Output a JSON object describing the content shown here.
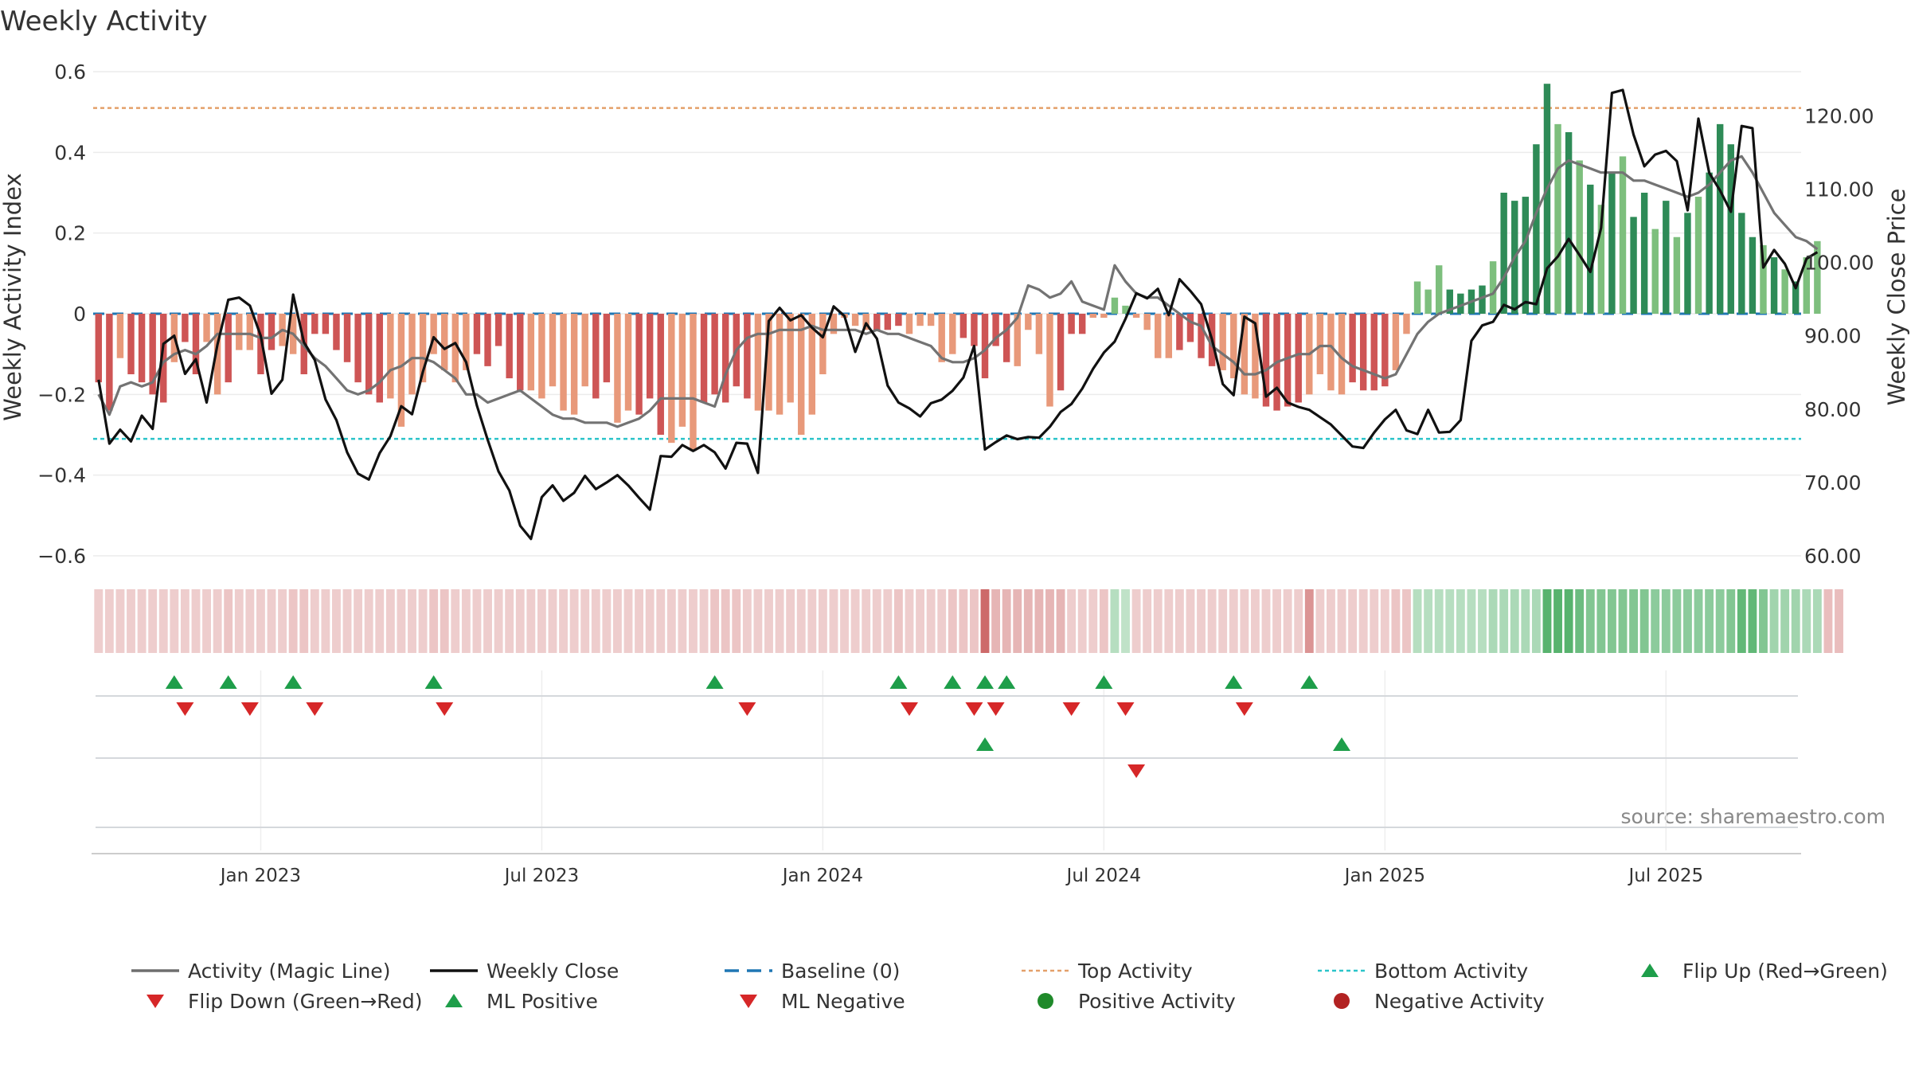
{
  "chart_data": {
    "type": "bar+line",
    "title": "Weekly Activity",
    "ylabel_left": "Weekly Activity Index",
    "ylabel_right": "Weekly Close Price",
    "source": "source: sharemaestro.com",
    "y_left": {
      "min": -0.6,
      "max": 0.6,
      "ticks": [
        0.6,
        0.4,
        0.2,
        0,
        -0.2,
        -0.4,
        -0.6
      ],
      "tick_labels": [
        "0.6",
        "0.4",
        "0.2",
        "0",
        "−0.2",
        "−0.4",
        "−0.6"
      ]
    },
    "y_right": {
      "min": 60,
      "max": 126,
      "ticks": [
        120,
        110,
        100,
        90,
        80,
        70,
        60
      ],
      "tick_labels": [
        "120.00",
        "110.00",
        "100.00",
        "90.00",
        "80.00",
        "70.00",
        "60.00"
      ]
    },
    "top_activity": 0.51,
    "bottom_activity": -0.31,
    "weeks": 158,
    "x_ticks": [
      {
        "week": 15,
        "label": "Jan 2023"
      },
      {
        "week": 41,
        "label": "Jul 2023"
      },
      {
        "week": 67,
        "label": "Jan 2024"
      },
      {
        "week": 93,
        "label": "Jul 2024"
      },
      {
        "week": 119,
        "label": "Jan 2025"
      },
      {
        "week": 145,
        "label": "Jul 2025"
      }
    ],
    "activity": [
      -0.17,
      -0.24,
      -0.11,
      -0.15,
      -0.17,
      -0.2,
      -0.22,
      -0.12,
      -0.07,
      -0.15,
      -0.07,
      -0.2,
      -0.17,
      -0.09,
      -0.09,
      -0.15,
      -0.09,
      -0.08,
      -0.1,
      -0.15,
      -0.05,
      -0.05,
      -0.09,
      -0.12,
      -0.17,
      -0.2,
      -0.22,
      -0.21,
      -0.28,
      -0.2,
      -0.17,
      -0.1,
      -0.14,
      -0.17,
      -0.14,
      -0.1,
      -0.13,
      -0.08,
      -0.16,
      -0.19,
      -0.19,
      -0.21,
      -0.18,
      -0.24,
      -0.25,
      -0.18,
      -0.21,
      -0.17,
      -0.27,
      -0.24,
      -0.25,
      -0.21,
      -0.3,
      -0.32,
      -0.28,
      -0.34,
      -0.22,
      -0.2,
      -0.22,
      -0.18,
      -0.21,
      -0.24,
      -0.24,
      -0.25,
      -0.22,
      -0.3,
      -0.25,
      -0.15,
      -0.05,
      -0.01,
      -0.03,
      -0.04,
      -0.04,
      -0.04,
      -0.03,
      -0.05,
      -0.03,
      -0.03,
      -0.12,
      -0.1,
      -0.06,
      -0.08,
      -0.16,
      -0.08,
      -0.12,
      -0.13,
      -0.04,
      -0.1,
      -0.23,
      -0.19,
      -0.05,
      -0.05,
      -0.01,
      -0.01,
      0.04,
      0.02,
      -0.01,
      -0.04,
      -0.11,
      -0.11,
      -0.09,
      -0.07,
      -0.11,
      -0.13,
      -0.14,
      -0.16,
      -0.2,
      -0.21,
      -0.23,
      -0.24,
      -0.23,
      -0.22,
      -0.2,
      -0.15,
      -0.19,
      -0.2,
      -0.17,
      -0.19,
      -0.19,
      -0.18,
      -0.14,
      -0.05,
      0.08,
      0.06,
      0.12,
      0.06,
      0.05,
      0.06,
      0.07,
      0.13,
      0.3,
      0.28,
      0.29,
      0.42,
      0.57,
      0.47,
      0.45,
      0.38,
      0.32,
      0.27,
      0.35,
      0.39,
      0.24,
      0.3,
      0.21,
      0.28,
      0.19,
      0.25,
      0.29,
      0.35,
      0.47,
      0.42,
      0.25,
      0.19,
      0.17,
      0.14,
      0.11,
      0.08,
      0.14,
      0.18
    ],
    "magic_line": [
      -0.2,
      -0.25,
      -0.18,
      -0.17,
      -0.18,
      -0.17,
      -0.12,
      -0.1,
      -0.09,
      -0.1,
      -0.08,
      -0.05,
      -0.05,
      -0.05,
      -0.05,
      -0.06,
      -0.06,
      -0.04,
      -0.05,
      -0.08,
      -0.11,
      -0.13,
      -0.16,
      -0.19,
      -0.2,
      -0.19,
      -0.17,
      -0.14,
      -0.13,
      -0.11,
      -0.11,
      -0.12,
      -0.14,
      -0.16,
      -0.2,
      -0.2,
      -0.22,
      -0.21,
      -0.2,
      -0.19,
      -0.21,
      -0.23,
      -0.25,
      -0.26,
      -0.26,
      -0.27,
      -0.27,
      -0.27,
      -0.28,
      -0.27,
      -0.26,
      -0.24,
      -0.21,
      -0.21,
      -0.21,
      -0.21,
      -0.22,
      -0.23,
      -0.15,
      -0.09,
      -0.06,
      -0.05,
      -0.05,
      -0.04,
      -0.04,
      -0.04,
      -0.03,
      -0.04,
      -0.04,
      -0.04,
      -0.04,
      -0.05,
      -0.04,
      -0.05,
      -0.05,
      -0.06,
      -0.07,
      -0.08,
      -0.11,
      -0.12,
      -0.12,
      -0.11,
      -0.09,
      -0.06,
      -0.04,
      -0.01,
      0.07,
      0.06,
      0.04,
      0.05,
      0.08,
      0.03,
      0.02,
      0.01,
      0.12,
      0.08,
      0.05,
      0.04,
      0.04,
      0.02,
      0.0,
      -0.02,
      -0.03,
      -0.08,
      -0.1,
      -0.12,
      -0.15,
      -0.15,
      -0.14,
      -0.12,
      -0.11,
      -0.1,
      -0.1,
      -0.08,
      -0.08,
      -0.11,
      -0.13,
      -0.14,
      -0.15,
      -0.16,
      -0.15,
      -0.1,
      -0.05,
      -0.02,
      0.0,
      0.01,
      0.02,
      0.03,
      0.04,
      0.05,
      0.09,
      0.14,
      0.18,
      0.25,
      0.31,
      0.36,
      0.38,
      0.37,
      0.36,
      0.35,
      0.35,
      0.35,
      0.33,
      0.33,
      0.32,
      0.31,
      0.3,
      0.29,
      0.3,
      0.32,
      0.35,
      0.38,
      0.39,
      0.35,
      0.3,
      0.25,
      0.22,
      0.19,
      0.18,
      0.16
    ],
    "close": [
      84.0,
      75.3,
      77.2,
      75.6,
      79.1,
      77.3,
      88.9,
      90.0,
      84.8,
      86.8,
      80.9,
      88.8,
      94.9,
      95.2,
      94.1,
      90.0,
      82.1,
      84.0,
      95.6,
      89.1,
      86.7,
      81.3,
      78.5,
      74.1,
      71.2,
      70.4,
      74.0,
      76.3,
      80.4,
      79.3,
      85.1,
      89.8,
      88.2,
      89.0,
      86.4,
      80.5,
      75.8,
      71.5,
      68.9,
      64.1,
      62.3,
      68.0,
      69.6,
      67.5,
      68.6,
      70.9,
      69.1,
      70.0,
      71.0,
      69.6,
      67.9,
      66.3,
      73.6,
      73.5,
      75.1,
      74.3,
      75.1,
      74.1,
      71.9,
      75.4,
      75.3,
      71.3,
      92.0,
      93.8,
      92.1,
      92.8,
      91.1,
      89.8,
      94.0,
      92.7,
      87.8,
      91.7,
      89.6,
      83.2,
      80.9,
      80.1,
      79.0,
      80.8,
      81.3,
      82.5,
      84.3,
      88.6,
      74.5,
      75.5,
      76.4,
      75.9,
      76.2,
      76.1,
      77.6,
      79.6,
      80.7,
      82.8,
      85.5,
      87.7,
      89.2,
      92.3,
      95.8,
      95.1,
      96.4,
      92.8,
      97.7,
      96.1,
      94.3,
      89.5,
      83.4,
      81.9,
      92.6,
      91.7,
      81.7,
      82.9,
      80.9,
      80.3,
      79.9,
      78.9,
      77.9,
      76.4,
      74.9,
      74.7,
      76.8,
      78.6,
      79.9,
      77.1,
      76.6,
      79.9,
      76.8,
      76.9,
      78.5,
      89.3,
      91.4,
      91.9,
      94.2,
      93.6,
      94.6,
      94.3,
      99.2,
      100.8,
      103.2,
      101.0,
      98.7,
      104.7,
      123.1,
      123.5,
      117.4,
      113.1,
      114.7,
      115.2,
      113.8,
      107.1,
      119.6,
      112.2,
      109.8,
      106.9,
      118.6,
      118.3,
      99.3,
      101.7,
      99.8,
      96.5,
      100.5,
      101.4
    ],
    "segments": [
      {
        "start": 0,
        "end": 2,
        "color": "#ce5555",
        "light": false
      },
      {
        "start": 2,
        "end": 3,
        "color": "#e8997a",
        "light": true
      },
      {
        "start": 3,
        "end": 7,
        "color": "#ce5555",
        "light": false
      },
      {
        "start": 7,
        "end": 8,
        "color": "#e8997a",
        "light": true
      },
      {
        "start": 8,
        "end": 10,
        "color": "#ce5555",
        "light": false
      },
      {
        "start": 10,
        "end": 12,
        "color": "#e8997a",
        "light": true
      },
      {
        "start": 12,
        "end": 13,
        "color": "#ce5555",
        "light": false
      },
      {
        "start": 13,
        "end": 15,
        "color": "#e8997a",
        "light": true
      },
      {
        "start": 15,
        "end": 17,
        "color": "#ce5555",
        "light": false
      },
      {
        "start": 17,
        "end": 19,
        "color": "#e8997a",
        "light": true
      },
      {
        "start": 19,
        "end": 27,
        "color": "#ce5555",
        "light": false
      },
      {
        "start": 27,
        "end": 35,
        "color": "#e8997a",
        "light": true
      },
      {
        "start": 35,
        "end": 40,
        "color": "#ce5555",
        "light": false
      },
      {
        "start": 40,
        "end": 46,
        "color": "#e8997a",
        "light": true
      },
      {
        "start": 46,
        "end": 48,
        "color": "#ce5555",
        "light": false
      },
      {
        "start": 48,
        "end": 50,
        "color": "#e8997a",
        "light": true
      },
      {
        "start": 50,
        "end": 53,
        "color": "#ce5555",
        "light": false
      },
      {
        "start": 53,
        "end": 56,
        "color": "#e8997a",
        "light": true
      },
      {
        "start": 56,
        "end": 61,
        "color": "#ce5555",
        "light": false
      },
      {
        "start": 61,
        "end": 72,
        "color": "#e8997a",
        "light": true
      },
      {
        "start": 72,
        "end": 75,
        "color": "#ce5555",
        "light": false
      },
      {
        "start": 75,
        "end": 80,
        "color": "#e8997a",
        "light": true
      },
      {
        "start": 80,
        "end": 85,
        "color": "#ce5555",
        "light": false
      },
      {
        "start": 85,
        "end": 89,
        "color": "#e8997a",
        "light": true
      },
      {
        "start": 89,
        "end": 92,
        "color": "#ce5555",
        "light": false
      },
      {
        "start": 92,
        "end": 100,
        "color": "#e8997a",
        "light": true
      },
      {
        "start": 100,
        "end": 104,
        "color": "#ce5555",
        "light": false
      },
      {
        "start": 104,
        "end": 108,
        "color": "#e8997a",
        "light": true
      },
      {
        "start": 108,
        "end": 112,
        "color": "#ce5555",
        "light": false
      },
      {
        "start": 112,
        "end": 116,
        "color": "#e8997a",
        "light": true
      },
      {
        "start": 116,
        "end": 120,
        "color": "#ce5555",
        "light": false
      },
      {
        "start": 120,
        "end": 122,
        "color": "#e8997a",
        "light": true
      },
      {
        "start": 122,
        "end": 130,
        "color": "#ce5555",
        "light": false
      },
      {
        "start": 130,
        "end": 137,
        "color": "#e8997a",
        "light": true
      },
      {
        "start": 137,
        "end": 142,
        "color": "#ce5555",
        "light": false
      },
      {
        "start": 142,
        "end": 153,
        "color": "#e8997a",
        "light": true
      },
      {
        "start": 153,
        "end": 158,
        "color": "#ce5555",
        "light": false
      }
    ],
    "positive_colors": {
      "dark": "#2e8b57",
      "light": "#7dbf7d"
    },
    "negative_colors": {
      "dark": "#ce5555",
      "light": "#e8997a"
    },
    "positive_weeks_dark": [
      12,
      15,
      18,
      19,
      31,
      57,
      80,
      84,
      86,
      88,
      91,
      99,
      104,
      112,
      119,
      125,
      126,
      127,
      128,
      130,
      131,
      132,
      133,
      134,
      136,
      138,
      140,
      142,
      143,
      145,
      147,
      149,
      150,
      151,
      152,
      153,
      155,
      157
    ],
    "flip_up_weeks": [
      7,
      12,
      18,
      31,
      57,
      74,
      79,
      82,
      84,
      93,
      105,
      112
    ],
    "flip_down_weeks": [
      8,
      14,
      20,
      32,
      60,
      75,
      81,
      83,
      90,
      95,
      106
    ],
    "ml_positive_weeks": [
      82,
      115
    ],
    "ml_negative_weeks": [
      96
    ],
    "heat_strip": [
      0.3,
      0.3,
      0.3,
      0.3,
      0.3,
      0.3,
      0.3,
      0.3,
      0.3,
      0.3,
      0.3,
      0.3,
      0.35,
      0.3,
      0.3,
      0.3,
      0.3,
      0.3,
      0.35,
      0.35,
      0.3,
      0.3,
      0.3,
      0.3,
      0.3,
      0.3,
      0.3,
      0.3,
      0.3,
      0.3,
      0.3,
      0.35,
      0.35,
      0.3,
      0.3,
      0.3,
      0.3,
      0.3,
      0.3,
      0.3,
      0.3,
      0.3,
      0.3,
      0.3,
      0.3,
      0.3,
      0.3,
      0.3,
      0.3,
      0.3,
      0.3,
      0.3,
      0.3,
      0.3,
      0.3,
      0.3,
      0.3,
      0.35,
      0.35,
      0.35,
      0.3,
      0.3,
      0.3,
      0.3,
      0.3,
      0.3,
      0.3,
      0.3,
      0.3,
      0.3,
      0.3,
      0.3,
      0.3,
      0.3,
      0.35,
      0.3,
      0.3,
      0.3,
      0.3,
      0.35,
      0.35,
      0.35,
      0.9,
      0.45,
      0.45,
      0.45,
      0.45,
      0.45,
      0.45,
      0.45,
      0.3,
      0.3,
      0.3,
      0.35,
      0.35,
      0.3,
      0.3,
      0.3,
      0.3,
      0.3,
      0.3,
      0.3,
      0.3,
      0.3,
      0.3,
      0.3,
      0.3,
      0.3,
      0.3,
      0.3,
      0.3,
      0.3,
      0.65,
      0.3,
      0.3,
      0.3,
      0.3,
      0.3,
      0.3,
      0.3,
      0.35,
      0.35,
      0.35,
      0.35,
      0.35,
      0.35,
      0.35,
      0.35,
      0.35,
      0.4,
      0.4,
      0.4,
      0.4,
      0.4,
      0.8,
      0.8,
      0.8,
      0.7,
      0.6,
      0.6,
      0.6,
      0.6,
      0.6,
      0.6,
      0.55,
      0.55,
      0.55,
      0.55,
      0.55,
      0.55,
      0.55,
      0.6,
      0.75,
      0.75,
      0.6,
      0.45,
      0.45,
      0.45,
      0.4,
      0.4,
      0.4,
      0.4
    ],
    "legend": [
      {
        "label": "Activity (Magic Line)",
        "kind": "line",
        "color": "#6e6e6e"
      },
      {
        "label": "Weekly Close",
        "kind": "line",
        "color": "#111111"
      },
      {
        "label": "Baseline (0)",
        "kind": "dash",
        "color": "#1f77b4"
      },
      {
        "label": "Top Activity",
        "kind": "dot",
        "color": "#e4a06a"
      },
      {
        "label": "Bottom Activity",
        "kind": "dot",
        "color": "#2bc4c9"
      },
      {
        "label": "Flip Up (Red→Green)",
        "kind": "up",
        "color": "#1e9e4a"
      },
      {
        "label": "Flip Down (Green→Red)",
        "kind": "down",
        "color": "#d62728"
      },
      {
        "label": "ML Positive",
        "kind": "up",
        "color": "#1e9e4a"
      },
      {
        "label": "ML Negative",
        "kind": "down",
        "color": "#d62728"
      },
      {
        "label": "Positive Activity",
        "kind": "circle",
        "color": "#1f8a2a"
      },
      {
        "label": "Negative Activity",
        "kind": "circle",
        "color": "#b22222"
      }
    ]
  }
}
